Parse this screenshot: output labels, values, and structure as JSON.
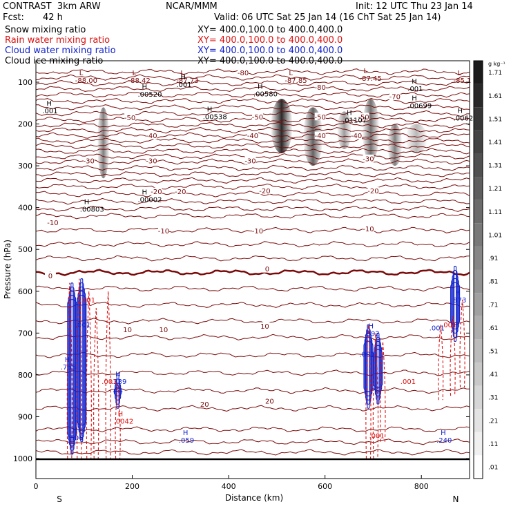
{
  "header": {
    "model": "CONTRAST  3km ARW",
    "org": "NCAR/MMM",
    "init": "Init: 12 UTC Thu 23 Jan 14",
    "fcst_label": "Fcst:",
    "fcst_value": "42 h",
    "valid": "Valid: 06 UTC Sat 25 Jan 14 (16 ChT Sat 25 Jan 14)"
  },
  "fields": [
    {
      "name": "Snow mixing ratio",
      "xy": "XY= 400.0,100.0 to 400.0,400.0",
      "color": "#000000"
    },
    {
      "name": "Rain water mixing ratio",
      "xy": "XY= 400.0,100.0 to 400.0,400.0",
      "color": "#dd1111"
    },
    {
      "name": "Cloud water mixing ratio",
      "xy": "XY= 400.0,100.0 to 400.0,400.0",
      "color": "#1122cc"
    },
    {
      "name": "Cloud ice mixing ratio",
      "xy": "XY= 400.0,100.0 to 400.0,400.0",
      "color": "#000000"
    }
  ],
  "colors": {
    "temperature": "#7a0a0a",
    "rain": "#dd1111",
    "cloud_water": "#1122cc",
    "snow_shade": "#333333",
    "outline": "#000000"
  },
  "chart_data": {
    "type": "cross-section",
    "xlabel": "Distance (km)",
    "ylabel": "Pressure (hPa)",
    "xlim": [
      0,
      900
    ],
    "ylim": [
      1000,
      50
    ],
    "x_ticks": [
      "0",
      "200",
      "400",
      "600",
      "800"
    ],
    "y_ticks": [
      "100",
      "200",
      "300",
      "400",
      "500",
      "600",
      "700",
      "800",
      "900",
      "1000"
    ],
    "end_labels": {
      "left": "S",
      "right": "N"
    },
    "colorbar": {
      "unit": "g kg⁻¹",
      "ticks": [
        "1.71",
        "1.61",
        "1.51",
        "1.41",
        "1.31",
        "1.21",
        "1.11",
        "1.01",
        ".91",
        ".81",
        ".71",
        ".61",
        ".51",
        ".41",
        ".31",
        ".21",
        ".11",
        ".01"
      ]
    },
    "temperature_isotherms": [
      {
        "label": "-80",
        "p": 75
      },
      {
        "label": "-70",
        "p": 130
      },
      {
        "label": "-50",
        "p": 190
      },
      {
        "label": "-40",
        "p": 240
      },
      {
        "label": "-30",
        "p": 290
      },
      {
        "label": "-20",
        "p": 350
      },
      {
        "label": "-10",
        "p": 420
      },
      {
        "label": "0",
        "p": 555
      },
      {
        "label": "10",
        "p": 710
      },
      {
        "label": "20",
        "p": 880
      }
    ],
    "temperature_labels": [
      {
        "text": "-80",
        "x": 430,
        "p": 78
      },
      {
        "text": "-80",
        "x": 590,
        "p": 112
      },
      {
        "text": "-70",
        "x": 745,
        "p": 135
      },
      {
        "text": "-50",
        "x": 195,
        "p": 185
      },
      {
        "text": "-50",
        "x": 460,
        "p": 183
      },
      {
        "text": "-50",
        "x": 590,
        "p": 183
      },
      {
        "text": "-50",
        "x": 680,
        "p": 183
      },
      {
        "text": "-40",
        "x": 240,
        "p": 228
      },
      {
        "text": "-40",
        "x": 450,
        "p": 228
      },
      {
        "text": "-40",
        "x": 590,
        "p": 228
      },
      {
        "text": "-40",
        "x": 665,
        "p": 228
      },
      {
        "text": "-30",
        "x": 110,
        "p": 288
      },
      {
        "text": "-30",
        "x": 240,
        "p": 288
      },
      {
        "text": "-30",
        "x": 445,
        "p": 288
      },
      {
        "text": "-30",
        "x": 690,
        "p": 283
      },
      {
        "text": "-20",
        "x": 250,
        "p": 362
      },
      {
        "text": "-20",
        "x": 300,
        "p": 362
      },
      {
        "text": "-20",
        "x": 475,
        "p": 360
      },
      {
        "text": "-20",
        "x": 700,
        "p": 360
      },
      {
        "text": "-10",
        "x": 35,
        "p": 436
      },
      {
        "text": "-10",
        "x": 265,
        "p": 456
      },
      {
        "text": "-10",
        "x": 460,
        "p": 456
      },
      {
        "text": "-10",
        "x": 690,
        "p": 451
      },
      {
        "text": "0",
        "x": 30,
        "p": 563
      },
      {
        "text": "0",
        "x": 480,
        "p": 547
      },
      {
        "text": "10",
        "x": 190,
        "p": 692
      },
      {
        "text": "10",
        "x": 265,
        "p": 692
      },
      {
        "text": "10",
        "x": 475,
        "p": 684
      },
      {
        "text": "20",
        "x": 350,
        "p": 870
      },
      {
        "text": "20",
        "x": 485,
        "p": 863
      }
    ],
    "extrema": [
      {
        "sym": "L",
        "text": "-88.00",
        "x": 90,
        "p": 95,
        "color": "#7a0a0a"
      },
      {
        "sym": "L",
        "text": "-88.42",
        "x": 200,
        "p": 95,
        "color": "#7a0a0a"
      },
      {
        "sym": "L",
        "text": "-87.73",
        "x": 300,
        "p": 95,
        "color": "#7a0a0a"
      },
      {
        "sym": "L",
        "text": "-87.85",
        "x": 525,
        "p": 95,
        "color": "#7a0a0a"
      },
      {
        "sym": "L",
        "text": "-87.45",
        "x": 680,
        "p": 90,
        "color": "#7a0a0a"
      },
      {
        "sym": "L",
        "text": "-85.1",
        "x": 875,
        "p": 95,
        "color": "#7a0a0a"
      },
      {
        "sym": "H",
        "text": ".00520",
        "x": 220,
        "p": 128,
        "color": "#000000"
      },
      {
        "sym": "H",
        "text": ".00580",
        "x": 460,
        "p": 127,
        "color": "#000000"
      },
      {
        "sym": "H",
        "text": ".00538",
        "x": 355,
        "p": 182,
        "color": "#000000"
      },
      {
        "sym": "H",
        "text": ".01107",
        "x": 645,
        "p": 190,
        "color": "#000000"
      },
      {
        "sym": "H",
        "text": ".00699",
        "x": 780,
        "p": 155,
        "color": "#000000"
      },
      {
        "sym": "H",
        "text": ".0062",
        "x": 875,
        "p": 185,
        "color": "#000000"
      },
      {
        "sym": "H",
        "text": ".00002",
        "x": 220,
        "p": 380,
        "color": "#000000"
      },
      {
        "sym": "H",
        "text": ".00803",
        "x": 100,
        "p": 403,
        "color": "#000000"
      },
      {
        "sym": "H",
        "text": ".001",
        "x": 780,
        "p": 115,
        "color": "#000000"
      },
      {
        "sym": "H",
        "text": ".001",
        "x": 22,
        "p": 168,
        "color": "#000000"
      },
      {
        "sym": "H",
        "text": ".001",
        "x": 300,
        "p": 105,
        "color": "#000000"
      },
      {
        "sym": "H",
        "text": ".339",
        "x": 165,
        "p": 815,
        "color": "#1122cc"
      },
      {
        "sym": "H",
        "text": ".059",
        "x": 305,
        "p": 955,
        "color": "#1122cc"
      },
      {
        "sym": "H",
        "text": ".240",
        "x": 840,
        "p": 955,
        "color": "#1122cc"
      },
      {
        "sym": "H",
        "text": ".0042",
        "x": 170,
        "p": 910,
        "color": "#dd1111"
      },
      {
        "sym": "",
        "text": ".001",
        "x": 100,
        "p": 620,
        "color": "#dd1111"
      },
      {
        "sym": "",
        "text": ".001",
        "x": 145,
        "p": 815,
        "color": "#dd1111"
      },
      {
        "sym": "",
        "text": ".001",
        "x": 700,
        "p": 945,
        "color": "#dd1111"
      },
      {
        "sym": "",
        "text": ".001",
        "x": 765,
        "p": 815,
        "color": "#dd1111"
      },
      {
        "sym": "",
        "text": ".001",
        "x": 850,
        "p": 680,
        "color": "#dd1111"
      },
      {
        "sym": "",
        "text": ".001",
        "x": 680,
        "p": 750,
        "color": "#1122cc"
      },
      {
        "sym": "",
        "text": ".001",
        "x": 825,
        "p": 687,
        "color": "#1122cc"
      },
      {
        "sym": "",
        "text": ".001",
        "x": 90,
        "p": 680,
        "color": "#1122cc"
      },
      {
        "sym": "H",
        "text": ".765",
        "x": 60,
        "p": 780,
        "color": "#1122cc"
      },
      {
        "sym": "H",
        "text": ".506",
        "x": 75,
        "p": 950,
        "color": "#1122cc"
      },
      {
        "sym": "H",
        "text": ".992",
        "x": 690,
        "p": 700,
        "color": "#1122cc"
      },
      {
        "sym": "H",
        "text": ".873",
        "x": 870,
        "p": 620,
        "color": "#1122cc"
      }
    ],
    "snow_columns": [
      {
        "x": 140,
        "p_top": 160,
        "p_bot": 330,
        "width": 25,
        "value": 0.9
      },
      {
        "x": 510,
        "p_top": 140,
        "p_bot": 270,
        "width": 45,
        "value": 1.5
      },
      {
        "x": 575,
        "p_top": 160,
        "p_bot": 300,
        "width": 40,
        "value": 1.1
      },
      {
        "x": 640,
        "p_top": 170,
        "p_bot": 260,
        "width": 30,
        "value": 0.7
      },
      {
        "x": 695,
        "p_top": 140,
        "p_bot": 290,
        "width": 35,
        "value": 1.0
      },
      {
        "x": 745,
        "p_top": 200,
        "p_bot": 300,
        "width": 30,
        "value": 0.9
      },
      {
        "x": 790,
        "p_top": 200,
        "p_bot": 270,
        "width": 45,
        "value": 0.5
      }
    ],
    "cloud_water_columns": [
      {
        "x": 75,
        "p_top": 580,
        "p_bot": 990
      },
      {
        "x": 95,
        "p_top": 570,
        "p_bot": 960
      },
      {
        "x": 170,
        "p_top": 800,
        "p_bot": 880
      },
      {
        "x": 690,
        "p_top": 680,
        "p_bot": 880
      },
      {
        "x": 710,
        "p_top": 700,
        "p_bot": 870
      },
      {
        "x": 870,
        "p_top": 540,
        "p_bot": 720
      }
    ],
    "rain_columns": [
      {
        "x": 70,
        "p_top": 580,
        "p_bot": 1000
      },
      {
        "x": 90,
        "p_top": 570,
        "p_bot": 1000
      },
      {
        "x": 110,
        "p_top": 600,
        "p_bot": 1000
      },
      {
        "x": 125,
        "p_top": 640,
        "p_bot": 1000
      },
      {
        "x": 150,
        "p_top": 600,
        "p_bot": 1000
      },
      {
        "x": 170,
        "p_top": 820,
        "p_bot": 1000
      },
      {
        "x": 690,
        "p_top": 680,
        "p_bot": 1000
      },
      {
        "x": 705,
        "p_top": 700,
        "p_bot": 1000
      },
      {
        "x": 720,
        "p_top": 720,
        "p_bot": 960
      },
      {
        "x": 840,
        "p_top": 680,
        "p_bot": 860
      },
      {
        "x": 865,
        "p_top": 660,
        "p_bot": 850
      },
      {
        "x": 885,
        "p_top": 620,
        "p_bot": 830
      }
    ],
    "grid": false,
    "legend": "top-left"
  }
}
